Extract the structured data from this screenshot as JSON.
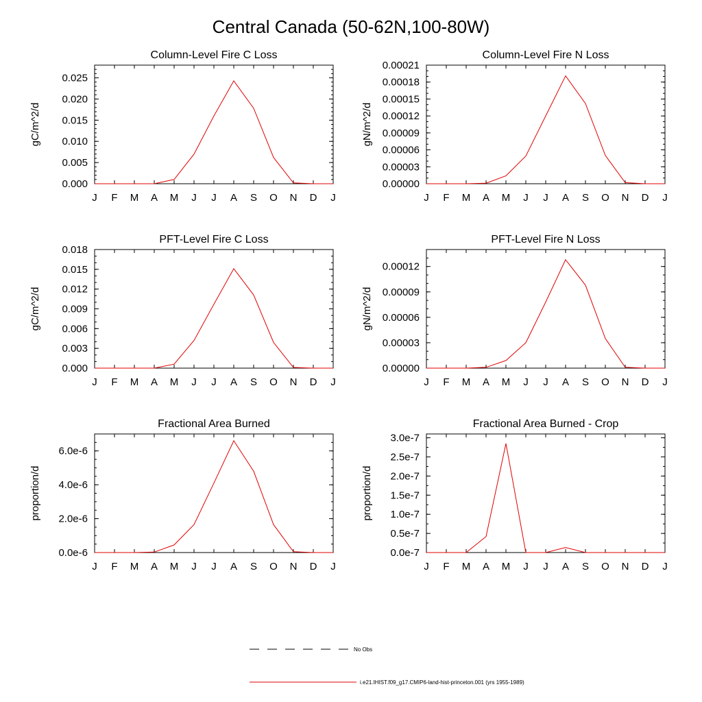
{
  "page": {
    "title": "Central Canada (50-62N,100-80W)"
  },
  "colors": {
    "series": "#e00000",
    "obs": "#000000"
  },
  "months": [
    "J",
    "F",
    "M",
    "A",
    "M",
    "J",
    "J",
    "A",
    "S",
    "O",
    "N",
    "D",
    "J"
  ],
  "chart_data": [
    {
      "type": "line",
      "title": "Column-Level Fire C Loss",
      "ylabel": "gC/m^2/d",
      "ylim": [
        0,
        0.028
      ],
      "yticks": [
        0,
        0.005,
        0.01,
        0.015,
        0.02,
        0.025
      ],
      "ytick_labels": [
        "0.000",
        "0.005",
        "0.010",
        "0.015",
        "0.020",
        "0.025"
      ],
      "yminor_step": 0.001,
      "x": [
        1,
        2,
        3,
        4,
        5,
        6,
        7,
        8,
        9,
        10,
        11,
        12,
        13
      ],
      "values": [
        0,
        0,
        0,
        0,
        0.001,
        0.007,
        0.016,
        0.0243,
        0.0178,
        0.0062,
        0.0002,
        0,
        0
      ]
    },
    {
      "type": "line",
      "title": "Column-Level Fire N Loss",
      "ylabel": "gN/m^2/d",
      "ylim": [
        0,
        0.00021
      ],
      "yticks": [
        0,
        3e-05,
        6e-05,
        9e-05,
        0.00012,
        0.00015,
        0.00018,
        0.00021
      ],
      "ytick_labels": [
        "0.00000",
        "0.00003",
        "0.00006",
        "0.00009",
        "0.00012",
        "0.00015",
        "0.00018",
        "0.00021"
      ],
      "yminor_step": 1e-05,
      "x": [
        1,
        2,
        3,
        4,
        5,
        6,
        7,
        8,
        9,
        10,
        11,
        12,
        13
      ],
      "values": [
        0,
        0,
        0,
        1e-06,
        1.4e-05,
        4.9e-05,
        0.00012,
        0.000191,
        0.000142,
        5e-05,
        2e-06,
        0,
        0
      ]
    },
    {
      "type": "line",
      "title": "PFT-Level Fire C Loss",
      "ylabel": "gC/m^2/d",
      "ylim": [
        0,
        0.018
      ],
      "yticks": [
        0,
        0.003,
        0.006,
        0.009,
        0.012,
        0.015,
        0.018
      ],
      "ytick_labels": [
        "0.000",
        "0.003",
        "0.006",
        "0.009",
        "0.012",
        "0.015",
        "0.018"
      ],
      "yminor_step": 0.001,
      "x": [
        1,
        2,
        3,
        4,
        5,
        6,
        7,
        8,
        9,
        10,
        11,
        12,
        13
      ],
      "values": [
        0,
        0,
        0,
        0,
        0.0006,
        0.0042,
        0.0097,
        0.0151,
        0.0111,
        0.0039,
        0.0001,
        0,
        0
      ]
    },
    {
      "type": "line",
      "title": "PFT-Level Fire N Loss",
      "ylabel": "gN/m^2/d",
      "ylim": [
        0,
        0.00014
      ],
      "yticks": [
        0,
        3e-05,
        6e-05,
        9e-05,
        0.00012
      ],
      "ytick_labels": [
        "0.00000",
        "0.00003",
        "0.00006",
        "0.00009",
        "0.00012"
      ],
      "yminor_step": 1e-05,
      "x": [
        1,
        2,
        3,
        4,
        5,
        6,
        7,
        8,
        9,
        10,
        11,
        12,
        13
      ],
      "values": [
        0,
        0,
        0,
        1e-06,
        9e-06,
        3e-05,
        7.8e-05,
        0.000128,
        9.8e-05,
        3.5e-05,
        1e-06,
        0,
        0
      ]
    },
    {
      "type": "line",
      "title": "Fractional Area Burned",
      "ylabel": "proportion/d",
      "ylim": [
        0,
        7e-06
      ],
      "yticks": [
        0,
        2e-06,
        4e-06,
        6e-06
      ],
      "ytick_labels": [
        "0.0e-6",
        "2.0e-6",
        "4.0e-6",
        "6.0e-6"
      ],
      "yminor_step": 5e-07,
      "x": [
        1,
        2,
        3,
        4,
        5,
        6,
        7,
        8,
        9,
        10,
        11,
        12,
        13
      ],
      "values": [
        0,
        0,
        0,
        3e-08,
        4.5e-07,
        1.65e-06,
        4.1e-06,
        6.6e-06,
        4.8e-06,
        1.65e-06,
        5e-08,
        0,
        0
      ]
    },
    {
      "type": "line",
      "title": "Fractional Area Burned - Crop",
      "ylabel": "proportion/d",
      "ylim": [
        0,
        3.1e-07
      ],
      "yticks": [
        0,
        5e-08,
        1e-07,
        1.5e-07,
        2e-07,
        2.5e-07,
        3e-07
      ],
      "ytick_labels": [
        "0.0e-7",
        "0.5e-7",
        "1.0e-7",
        "1.5e-7",
        "2.0e-7",
        "2.5e-7",
        "3.0e-7"
      ],
      "yminor_step": 2.5e-08,
      "x": [
        1,
        2,
        3,
        4,
        5,
        6,
        7,
        8,
        9,
        10,
        11,
        12,
        13
      ],
      "values": [
        0,
        0,
        0,
        4.2e-08,
        2.85e-07,
        0,
        0,
        1.3e-08,
        0,
        0,
        0,
        0,
        0
      ]
    }
  ],
  "legend": {
    "obs_label": "No Obs",
    "model_label": "i.e21.IHIST.f09_g17.CMIP6-land-hist-princeton.001 (yrs 1955-1989)"
  }
}
